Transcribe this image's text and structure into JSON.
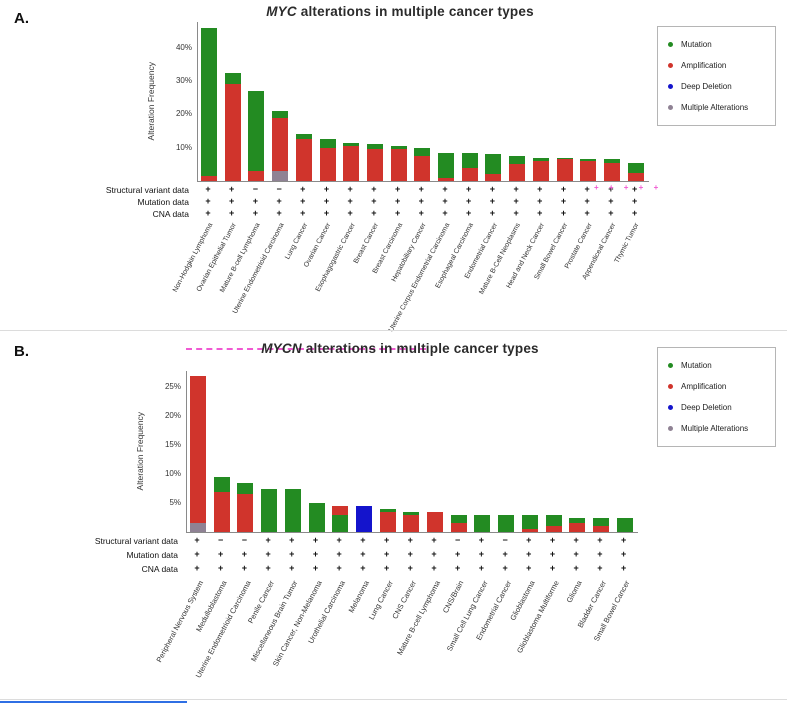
{
  "colors": {
    "mutation": "#238b22",
    "amplification": "#d0342c",
    "deep_deletion": "#1414cc",
    "multiple": "#8f8294",
    "axis_text": "#333333",
    "legend_border": "#b5b5b5",
    "pink_mark": "#f05ad2",
    "blue_edge": "#2f6fe4"
  },
  "legend_keys": [
    "mutation",
    "amplification",
    "deep_deletion",
    "multiple"
  ],
  "artifacts": {
    "pink_plus_marks": "+ + + + +"
  },
  "chart_data": [
    {
      "panel_label": "A.",
      "type": "bar",
      "stacked": true,
      "title_gene": "MYC",
      "title_rest": " alterations in multiple cancer types",
      "ylabel": "Alteration Frequency",
      "yticks": [
        10,
        20,
        30,
        40
      ],
      "ylim": [
        0,
        48
      ],
      "grid": false,
      "legend_position": "right",
      "legend": [
        "Mutation",
        "Amplification",
        "Deep Deletion",
        "Multiple Alterations"
      ],
      "categories": [
        "Non-Hodgkin Lymphoma",
        "Ovarian Epithelial Tumor",
        "Mature B-cell Lymphoma",
        "Uterine Endometrioid Carcinoma",
        "Lung Cancer",
        "Ovarian Cancer",
        "Esophagogastric Cancer",
        "Breast Cancer",
        "Breast Carcinoma",
        "Hepatobiliary Cancer",
        "Uterine Corpus Endometrial Carcinoma",
        "Esophageal Carcinoma",
        "Endometrial Cancer",
        "Mature B-Cell Neoplasms",
        "Head and Neck Cancer",
        "Small Bowel Cancer",
        "Prostate Cancer",
        "Appendiceal Cancer",
        "Thymic Tumor"
      ],
      "bars": [
        [
          [
            "amplification",
            1.5
          ],
          [
            "mutation",
            44.5
          ]
        ],
        [
          [
            "amplification",
            29
          ],
          [
            "mutation",
            3.5
          ]
        ],
        [
          [
            "amplification",
            3
          ],
          [
            "mutation",
            24
          ]
        ],
        [
          [
            "multiple",
            3
          ],
          [
            "amplification",
            16
          ],
          [
            "mutation",
            2
          ]
        ],
        [
          [
            "amplification",
            12.5
          ],
          [
            "mutation",
            1.5
          ]
        ],
        [
          [
            "amplification",
            10
          ],
          [
            "mutation",
            2.5
          ]
        ],
        [
          [
            "amplification",
            10.5
          ],
          [
            "mutation",
            1
          ]
        ],
        [
          [
            "amplification",
            9.5
          ],
          [
            "mutation",
            1.5
          ]
        ],
        [
          [
            "amplification",
            9.5
          ],
          [
            "mutation",
            1
          ]
        ],
        [
          [
            "amplification",
            7.5
          ],
          [
            "mutation",
            2.5
          ]
        ],
        [
          [
            "amplification",
            1
          ],
          [
            "mutation",
            7.5
          ]
        ],
        [
          [
            "amplification",
            4
          ],
          [
            "mutation",
            4.5
          ]
        ],
        [
          [
            "amplification",
            2
          ],
          [
            "mutation",
            6
          ]
        ],
        [
          [
            "amplification",
            5
          ],
          [
            "mutation",
            2.5
          ]
        ],
        [
          [
            "amplification",
            6
          ],
          [
            "mutation",
            1
          ]
        ],
        [
          [
            "amplification",
            6.5
          ],
          [
            "mutation",
            0.5
          ]
        ],
        [
          [
            "amplification",
            6
          ],
          [
            "mutation",
            0.5
          ]
        ],
        [
          [
            "amplification",
            5.5
          ],
          [
            "mutation",
            1
          ]
        ],
        [
          [
            "amplification",
            2.5
          ],
          [
            "mutation",
            3
          ]
        ]
      ],
      "availability_rows": [
        {
          "label": "Structural variant data",
          "values": [
            "+",
            "+",
            "−",
            "−",
            "+",
            "+",
            "+",
            "+",
            "+",
            "+",
            "+",
            "+",
            "+",
            "+",
            "+",
            "+",
            "+",
            "+",
            "+"
          ]
        },
        {
          "label": "Mutation data",
          "values": [
            "+",
            "+",
            "+",
            "+",
            "+",
            "+",
            "+",
            "+",
            "+",
            "+",
            "+",
            "+",
            "+",
            "+",
            "+",
            "+",
            "+",
            "+",
            "+"
          ]
        },
        {
          "label": "CNA data",
          "values": [
            "+",
            "+",
            "+",
            "+",
            "+",
            "+",
            "+",
            "+",
            "+",
            "+",
            "+",
            "+",
            "+",
            "+",
            "+",
            "+",
            "+",
            "+",
            "+"
          ]
        }
      ]
    },
    {
      "panel_label": "B.",
      "type": "bar",
      "stacked": true,
      "title_gene": "MYCN",
      "title_rest": " alterations in multiple cancer types",
      "ylabel": "Alteration Frequency",
      "yticks": [
        5,
        10,
        15,
        20,
        25
      ],
      "ylim": [
        0,
        28
      ],
      "grid": false,
      "legend_position": "right",
      "legend": [
        "Mutation",
        "Amplification",
        "Deep Deletion",
        "Multiple Alterations"
      ],
      "categories": [
        "Peripheral Nervous System",
        "Medulloblastoma",
        "Uterine Endometrioid Carcinoma",
        "Penile Cancer",
        "Miscellaneous Brain Tumor",
        "Skin Cancer, Non-Melanoma",
        "Urothelial Carcinoma",
        "Melanoma",
        "Lung Cancer",
        "CNS Cancer",
        "Mature B-cell Lymphoma",
        "CNS/Brain",
        "Small Cell Lung Cancer",
        "Endometrial Cancer",
        "Glioblastoma",
        "Glioblastoma Multiforme",
        "Glioma",
        "Bladder Cancer",
        "Small Bowel Cancer"
      ],
      "bars": [
        [
          [
            "multiple",
            1.5
          ],
          [
            "amplification",
            25.5
          ]
        ],
        [
          [
            "amplification",
            7
          ],
          [
            "mutation",
            2.5
          ]
        ],
        [
          [
            "amplification",
            6.5
          ],
          [
            "mutation",
            2
          ]
        ],
        [
          [
            "mutation",
            7.5
          ]
        ],
        [
          [
            "mutation",
            7.5
          ]
        ],
        [
          [
            "mutation",
            5
          ]
        ],
        [
          [
            "mutation",
            3
          ],
          [
            "amplification",
            1.5
          ]
        ],
        [
          [
            "deep_deletion",
            4.5
          ]
        ],
        [
          [
            "amplification",
            3.5
          ],
          [
            "mutation",
            0.5
          ]
        ],
        [
          [
            "amplification",
            3
          ],
          [
            "mutation",
            0.5
          ]
        ],
        [
          [
            "amplification",
            3.5
          ]
        ],
        [
          [
            "amplification",
            1.5
          ],
          [
            "mutation",
            1.5
          ]
        ],
        [
          [
            "mutation",
            3
          ]
        ],
        [
          [
            "mutation",
            3
          ]
        ],
        [
          [
            "amplification",
            0.5
          ],
          [
            "mutation",
            2.5
          ]
        ],
        [
          [
            "amplification",
            1
          ],
          [
            "mutation",
            2
          ]
        ],
        [
          [
            "amplification",
            1.5
          ],
          [
            "mutation",
            1
          ]
        ],
        [
          [
            "amplification",
            1
          ],
          [
            "mutation",
            1.5
          ]
        ],
        [
          [
            "mutation",
            2.5
          ]
        ]
      ],
      "availability_rows": [
        {
          "label": "Structural variant data",
          "values": [
            "+",
            "−",
            "−",
            "+",
            "+",
            "+",
            "+",
            "+",
            "+",
            "+",
            "+",
            "−",
            "+",
            "−",
            "+",
            "+",
            "+",
            "+",
            "+"
          ]
        },
        {
          "label": "Mutation data",
          "values": [
            "+",
            "+",
            "+",
            "+",
            "+",
            "+",
            "+",
            "+",
            "+",
            "+",
            "+",
            "+",
            "+",
            "+",
            "+",
            "+",
            "+",
            "+",
            "+"
          ]
        },
        {
          "label": "CNA data",
          "values": [
            "+",
            "+",
            "+",
            "+",
            "+",
            "+",
            "+",
            "+",
            "+",
            "+",
            "+",
            "+",
            "+",
            "+",
            "+",
            "+",
            "+",
            "+",
            "+"
          ]
        }
      ]
    }
  ]
}
